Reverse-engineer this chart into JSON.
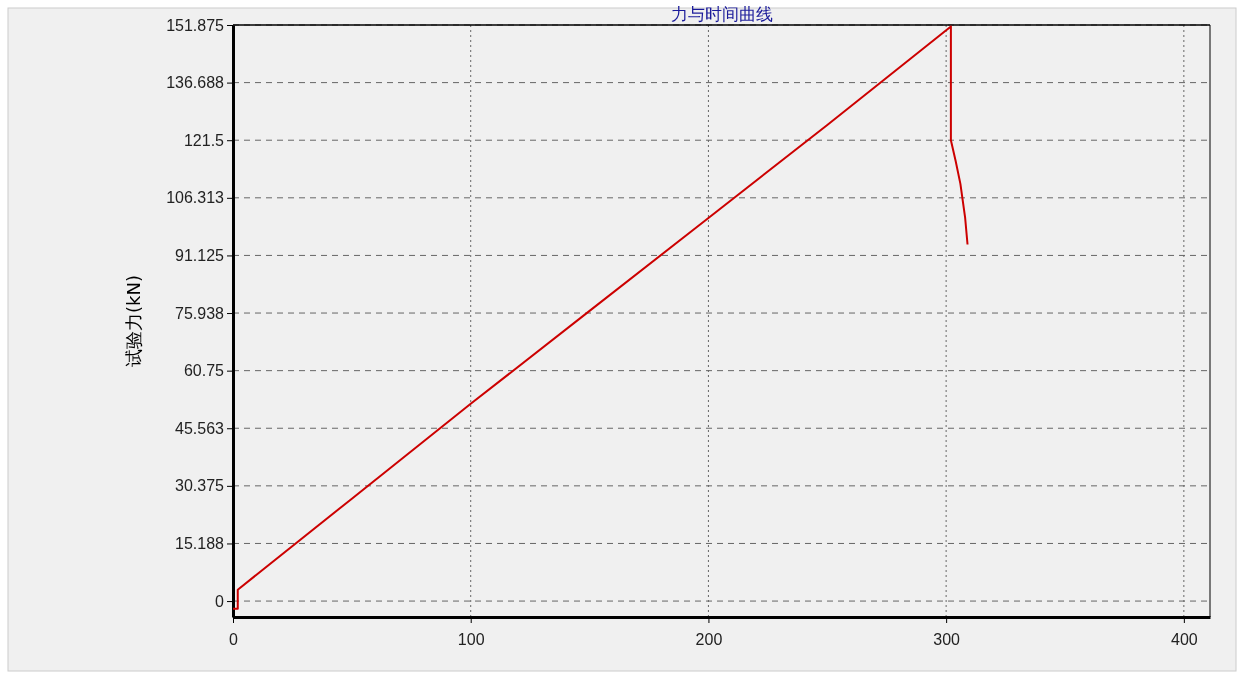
{
  "chart_data": {
    "type": "line",
    "title": "力与时间曲线",
    "ylabel": "试验力(kN)",
    "xlim": [
      0,
      411
    ],
    "ylim": [
      -4.2,
      151.875
    ],
    "xticks": [
      0,
      100,
      200,
      300,
      400
    ],
    "yticks": [
      0,
      15.188,
      30.375,
      45.563,
      60.75,
      75.938,
      91.125,
      106.313,
      121.5,
      136.688,
      151.875
    ],
    "grid": true,
    "line_style": "solid",
    "marker": "none",
    "series": [
      {
        "color": "#cc0000",
        "x": [
          0,
          2,
          2,
          50,
          100,
          150,
          200,
          250,
          302,
          302,
          302,
          304,
          306,
          308,
          309
        ],
        "values": [
          -2,
          -2,
          3,
          27,
          52,
          76.5,
          101,
          125.5,
          151.5,
          140,
          121.5,
          116,
          110,
          101,
          94
        ]
      }
    ]
  }
}
